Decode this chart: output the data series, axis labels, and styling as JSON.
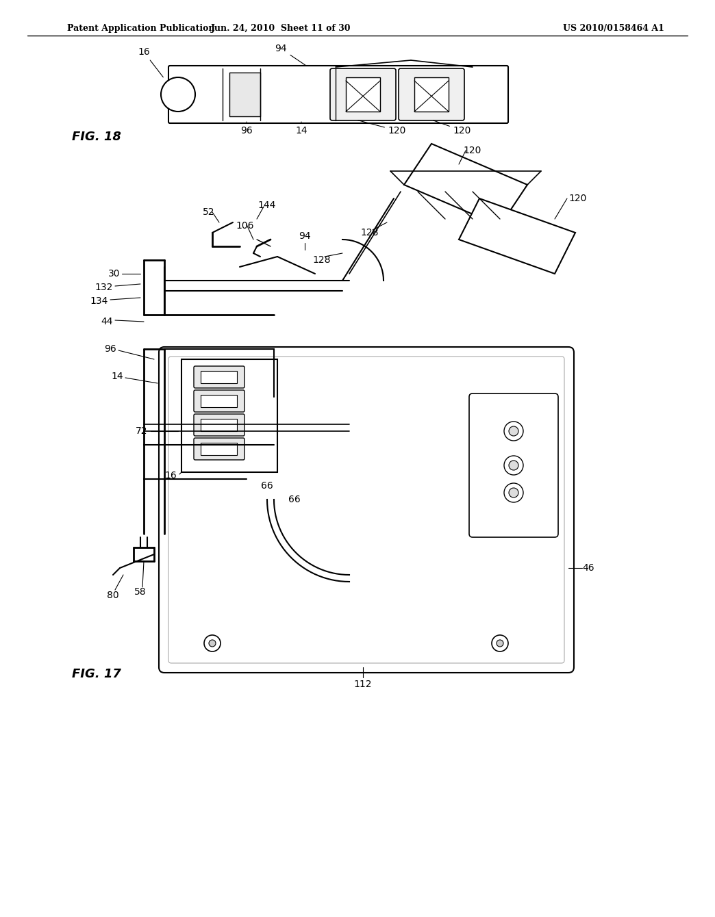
{
  "header_left": "Patent Application Publication",
  "header_center": "Jun. 24, 2010  Sheet 11 of 30",
  "header_right": "US 2010/0158464 A1",
  "fig18_label": "FIG. 18",
  "fig17_label": "FIG. 17",
  "background_color": "#ffffff",
  "line_color": "#000000",
  "drawing_color": "#333333"
}
